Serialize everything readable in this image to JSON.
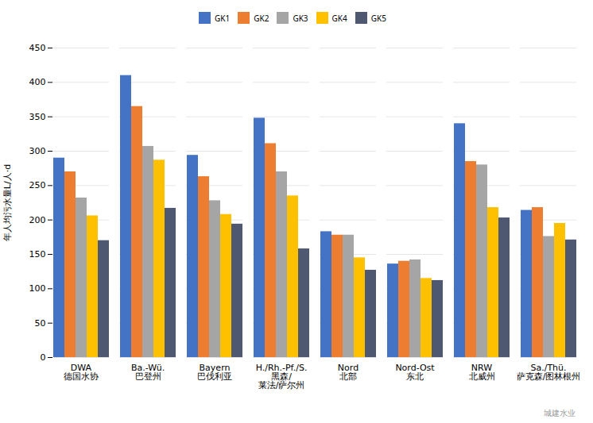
{
  "chart_data": {
    "type": "bar",
    "categories": [
      "DWA\n德国水协",
      "Ba.-Wü.\n巴登州",
      "Bayern\n巴伐利亚",
      "H./Rh.-Pf./S.\n黑森/\n莱法/萨尔州",
      "Nord\n北部",
      "Nord-Ost\n东北",
      "NRW\n北威州",
      "Sa./Thü.\n萨克森/图林根州"
    ],
    "series": [
      {
        "name": "GK1",
        "color": "#4472C4",
        "values": [
          290,
          410,
          294,
          348,
          183,
          136,
          340,
          214
        ]
      },
      {
        "name": "GK2",
        "color": "#ED7D31",
        "values": [
          270,
          365,
          263,
          311,
          178,
          140,
          285,
          218
        ]
      },
      {
        "name": "GK3",
        "color": "#A5A5A5",
        "values": [
          232,
          307,
          228,
          270,
          178,
          142,
          280,
          176
        ]
      },
      {
        "name": "GK4",
        "color": "#FFC000",
        "values": [
          206,
          287,
          208,
          235,
          145,
          115,
          218,
          195
        ]
      },
      {
        "name": "GK5",
        "color": "#4E5870",
        "values": [
          170,
          217,
          194,
          158,
          127,
          112,
          203,
          171
        ]
      }
    ],
    "ylabel": "年人均污水量L/人·d",
    "ylim": [
      0,
      450
    ],
    "yticks": [
      0,
      50,
      100,
      150,
      200,
      250,
      300,
      350,
      400,
      450
    ],
    "grid": true,
    "legend": "top",
    "annotations": [
      "城建水业"
    ]
  }
}
